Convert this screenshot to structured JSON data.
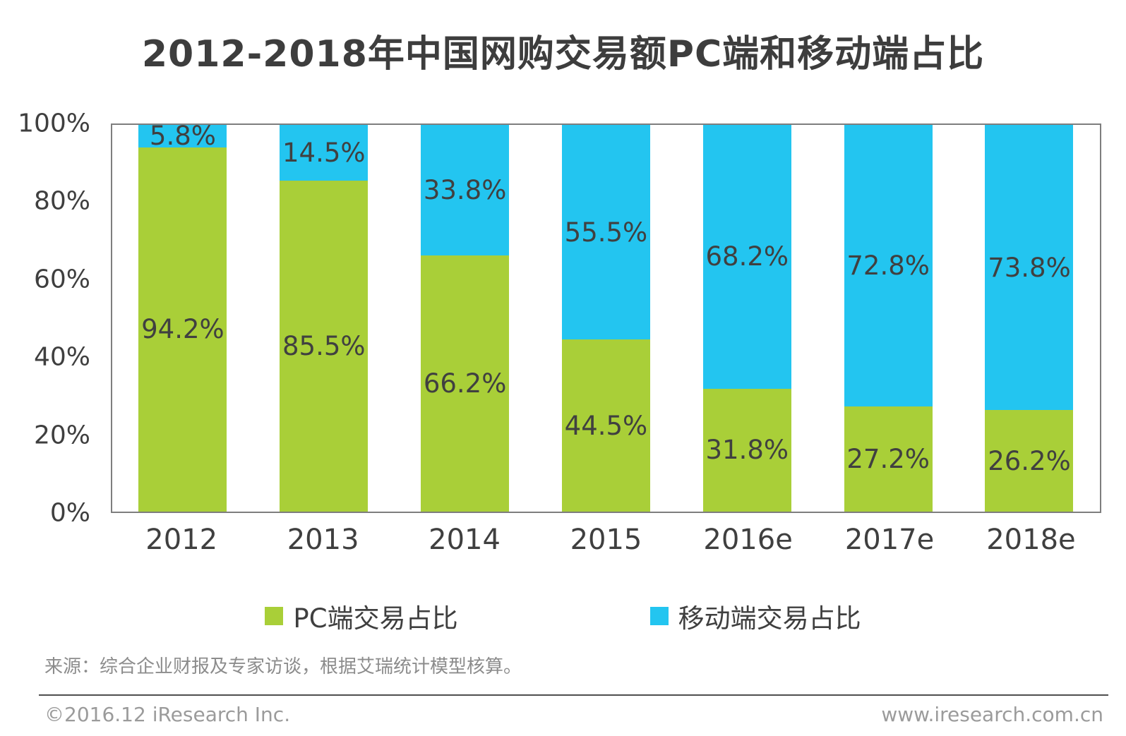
{
  "title": "2012-2018年中国网购交易额PC端和移动端占比",
  "colors": {
    "pc": "#a9cf38",
    "mobile": "#23c5f0",
    "plot_border": "#7e7e7e",
    "value_label": "#404040",
    "axis_text": "#3f3f3f",
    "source_text": "#8c8c8c",
    "footer_text": "#9b9b9b",
    "divider": "#4f4f4f"
  },
  "chart_data": {
    "type": "bar",
    "stacked": true,
    "title": "2012-2018年中国网购交易额PC端和移动端占比",
    "categories": [
      "2012",
      "2013",
      "2014",
      "2015",
      "2016e",
      "2017e",
      "2018e"
    ],
    "series": [
      {
        "name": "PC端交易占比",
        "color_key": "pc",
        "values": [
          94.2,
          85.5,
          66.2,
          44.5,
          31.8,
          27.2,
          26.2
        ]
      },
      {
        "name": "移动端交易占比",
        "color_key": "mobile",
        "values": [
          5.8,
          14.5,
          33.8,
          55.5,
          68.2,
          72.8,
          73.8
        ]
      }
    ],
    "value_suffix": "%",
    "xlabel": "",
    "ylabel": "",
    "ylim": [
      0,
      100
    ],
    "yticks": [
      {
        "v": 100,
        "label": "100%"
      },
      {
        "v": 80,
        "label": "80%"
      },
      {
        "v": 60,
        "label": "60%"
      },
      {
        "v": 40,
        "label": "40%"
      },
      {
        "v": 20,
        "label": "20%"
      },
      {
        "v": 0,
        "label": "0%"
      }
    ],
    "grid": false,
    "legend_position": "bottom"
  },
  "legend": [
    {
      "label": "PC端交易占比",
      "color_key": "pc"
    },
    {
      "label": "移动端交易占比",
      "color_key": "mobile"
    }
  ],
  "source_note": "来源：综合企业财报及专家访谈，根据艾瑞统计模型核算。",
  "footer": {
    "left": "©2016.12 iResearch  Inc.",
    "right": "www.iresearch.com.cn"
  }
}
